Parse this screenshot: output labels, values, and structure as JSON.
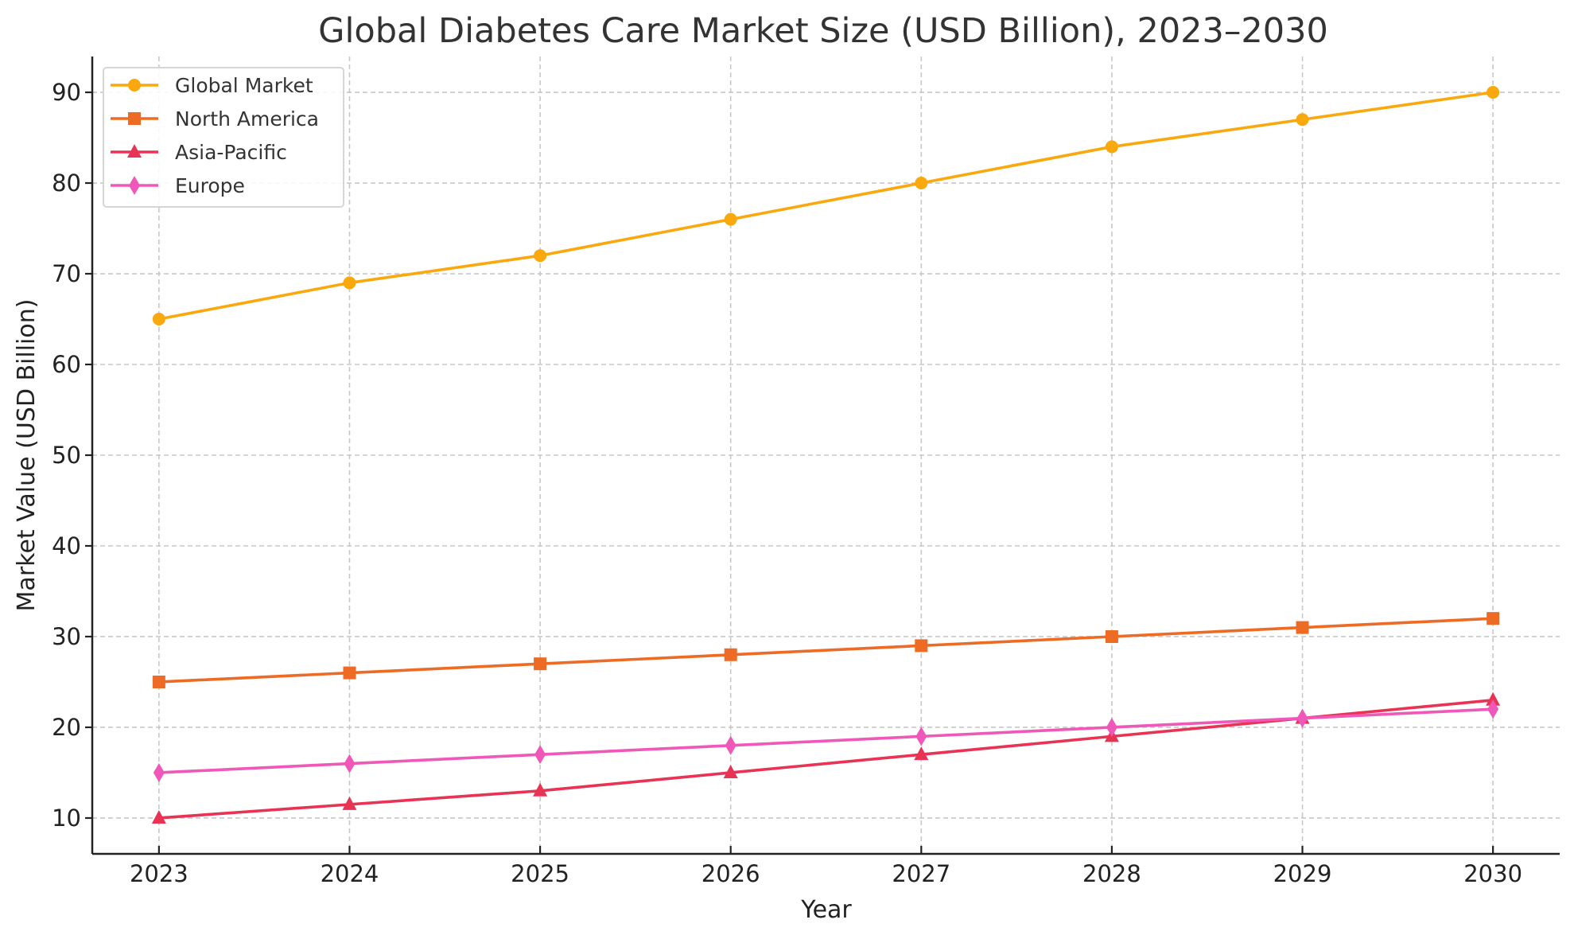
{
  "chart_data": {
    "type": "line",
    "title": "Global Diabetes Care Market Size (USD Billion), 2023–2030",
    "xlabel": "Year",
    "ylabel": "Market Value (USD Billion)",
    "x": [
      2023,
      2024,
      2025,
      2026,
      2027,
      2028,
      2029,
      2030
    ],
    "x_tick_labels": [
      "2023",
      "2024",
      "2025",
      "2026",
      "2027",
      "2028",
      "2029",
      "2030"
    ],
    "y_ticks": [
      10,
      20,
      30,
      40,
      50,
      60,
      70,
      80,
      90
    ],
    "y_tick_labels": [
      "10",
      "20",
      "30",
      "40",
      "50",
      "60",
      "70",
      "80",
      "90"
    ],
    "xlim": [
      2022.65,
      2030.35
    ],
    "ylim": [
      6.05,
      93.95
    ],
    "grid": true,
    "legend_position": "top-left",
    "series": [
      {
        "name": "Global Market",
        "marker": "circle",
        "color": "#f9a80e",
        "values": [
          65,
          69,
          72,
          76,
          80,
          84,
          87,
          90
        ]
      },
      {
        "name": "North America",
        "marker": "square",
        "color": "#ed6b25",
        "values": [
          25,
          26,
          27,
          28,
          29,
          30,
          31,
          32
        ]
      },
      {
        "name": "Asia-Pacific",
        "marker": "triangle",
        "color": "#e83355",
        "values": [
          10,
          11.5,
          13,
          15,
          17,
          19,
          21,
          23
        ]
      },
      {
        "name": "Europe",
        "marker": "diamond",
        "color": "#ef58b9",
        "values": [
          15,
          16,
          17,
          18,
          19,
          20,
          21,
          22
        ]
      }
    ]
  }
}
